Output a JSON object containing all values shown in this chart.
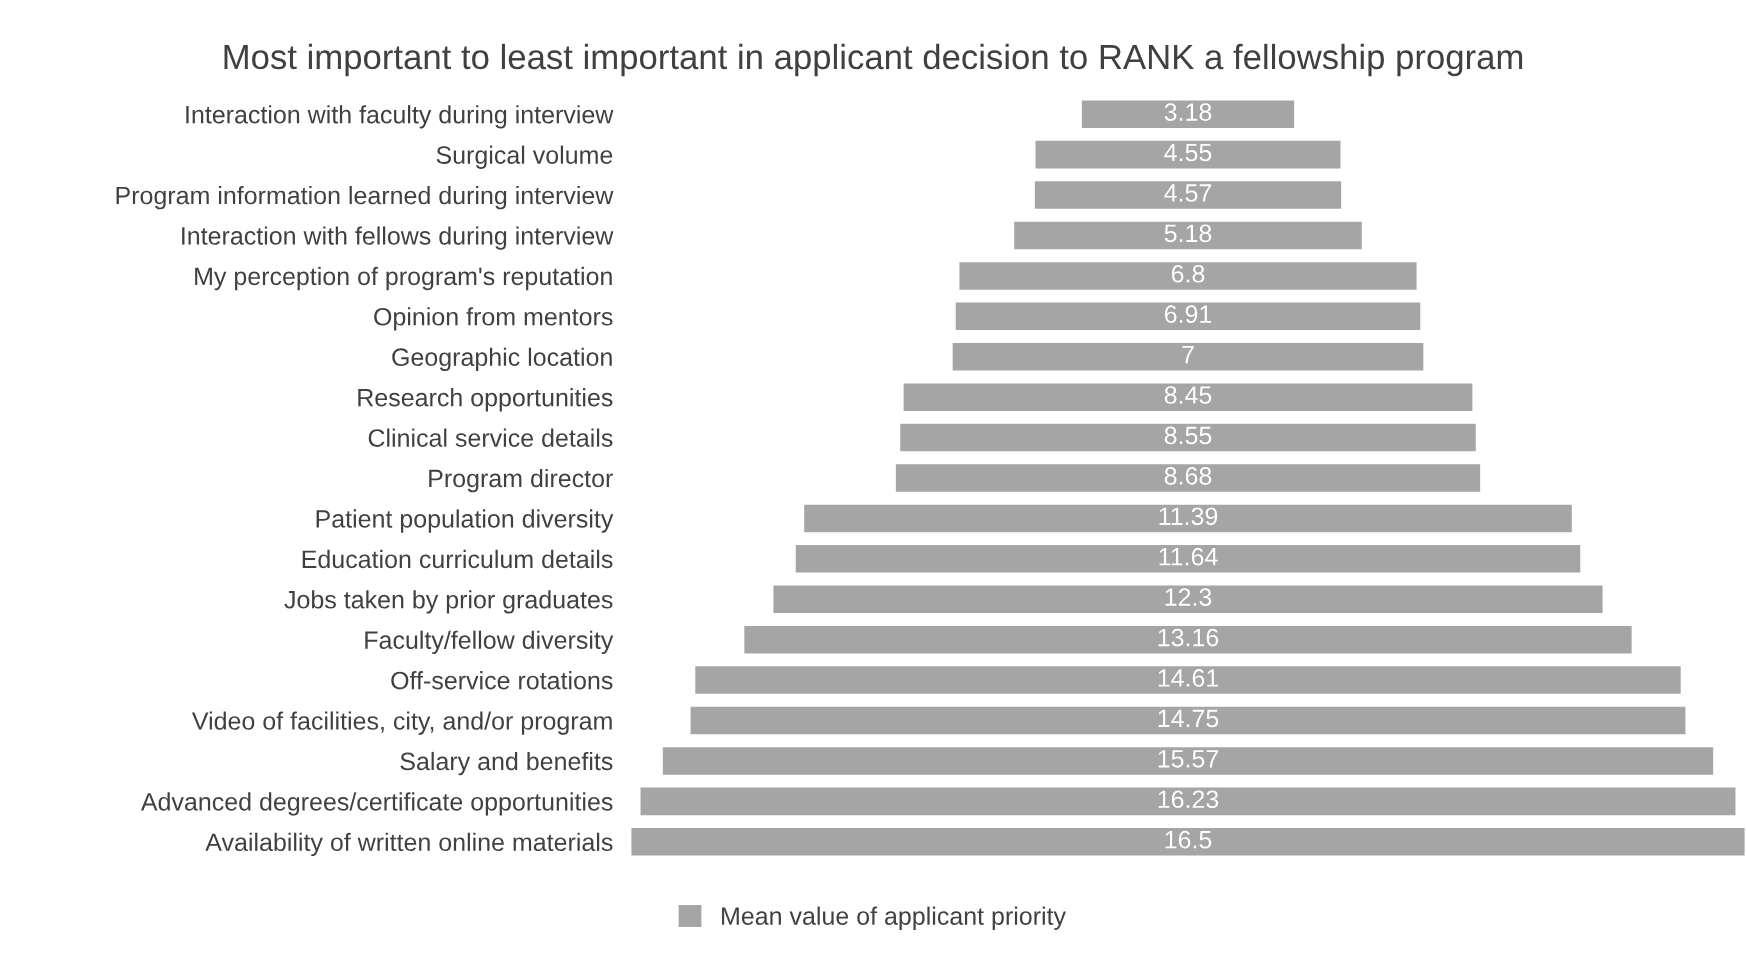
{
  "chart_data": {
    "type": "other",
    "title": "Most important to least important in applicant decision to RANK a fellowship program",
    "categories": [
      "Interaction with faculty during interview",
      "Surgical volume",
      "Program information learned during interview",
      "Interaction with fellows during interview",
      "My perception of program's reputation",
      "Opinion from mentors",
      "Geographic location",
      "Research opportunities",
      "Clinical service details",
      "Program director",
      "Patient population diversity",
      "Education curriculum details",
      "Jobs taken by prior graduates",
      "Faculty/fellow diversity",
      "Off-service rotations",
      "Video of facilities, city, and/or program",
      "Salary and benefits",
      "Advanced degrees/certificate opportunities",
      "Availability of written online materials"
    ],
    "series": [
      {
        "name": "Mean value of applicant priority",
        "color": "#a5a5a5",
        "values": [
          3.18,
          4.55,
          4.57,
          5.18,
          6.8,
          6.91,
          7,
          8.45,
          8.55,
          8.68,
          11.39,
          11.64,
          12.3,
          13.16,
          14.61,
          14.75,
          15.57,
          16.23,
          16.5
        ]
      }
    ],
    "data_labels": true,
    "legend": "bottom"
  }
}
